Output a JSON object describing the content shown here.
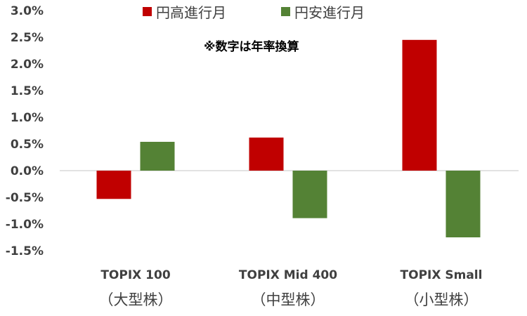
{
  "chart_data": {
    "type": "bar",
    "categories": [
      {
        "line1": "TOPIX 100",
        "line2": "（大型株）"
      },
      {
        "line1": "TOPIX Mid 400",
        "line2": "（中型株）"
      },
      {
        "line1": "TOPIX Small",
        "line2": "（小型株）"
      }
    ],
    "series": [
      {
        "name": "円高進行月",
        "color": "#c00000",
        "values": [
          -0.53,
          0.62,
          2.45
        ]
      },
      {
        "name": "円安進行月",
        "color": "#548235",
        "values": [
          0.54,
          -0.89,
          -1.25
        ]
      }
    ],
    "ylim": [
      -1.5,
      3.0
    ],
    "ytick_step": 0.5,
    "ytick_labels": [
      "3.0%",
      "2.5%",
      "2.0%",
      "1.5%",
      "1.0%",
      "0.5%",
      "0.0%",
      "-0.5%",
      "-1.0%",
      "-1.5%"
    ],
    "annotation": "※数字は年率換算",
    "legend_position": "top",
    "grid": false
  }
}
